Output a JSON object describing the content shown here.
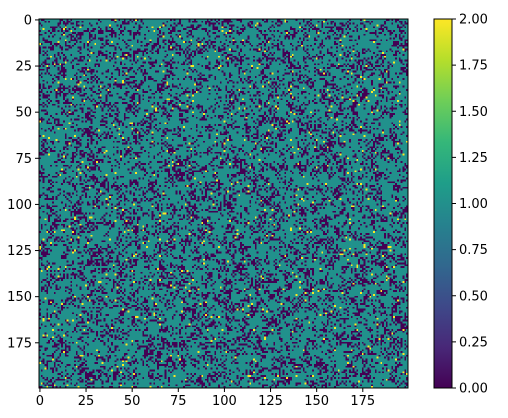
{
  "chart_data": {
    "type": "heatmap",
    "grid_size": 200,
    "x_ticks": [
      0,
      25,
      50,
      75,
      100,
      125,
      150,
      175
    ],
    "y_ticks": [
      0,
      25,
      50,
      75,
      100,
      125,
      150,
      175
    ],
    "colorbar": {
      "min": 0.0,
      "max": 2.0,
      "ticks": [
        "0.00",
        "0.25",
        "0.50",
        "0.75",
        "1.00",
        "1.25",
        "1.50",
        "1.75",
        "2.00"
      ]
    },
    "value_colors": {
      "0": "#440154",
      "1": "#21918c",
      "2": "#fde725"
    },
    "approx_fractions": {
      "0": 0.27,
      "1": 0.71,
      "2": 0.02
    },
    "cmap": "viridis",
    "colorbar_gradient": [
      "#440154",
      "#482878",
      "#3e4989",
      "#31688e",
      "#26828e",
      "#1f9e89",
      "#35b779",
      "#6ece58",
      "#b5de2b",
      "#fde725"
    ]
  }
}
